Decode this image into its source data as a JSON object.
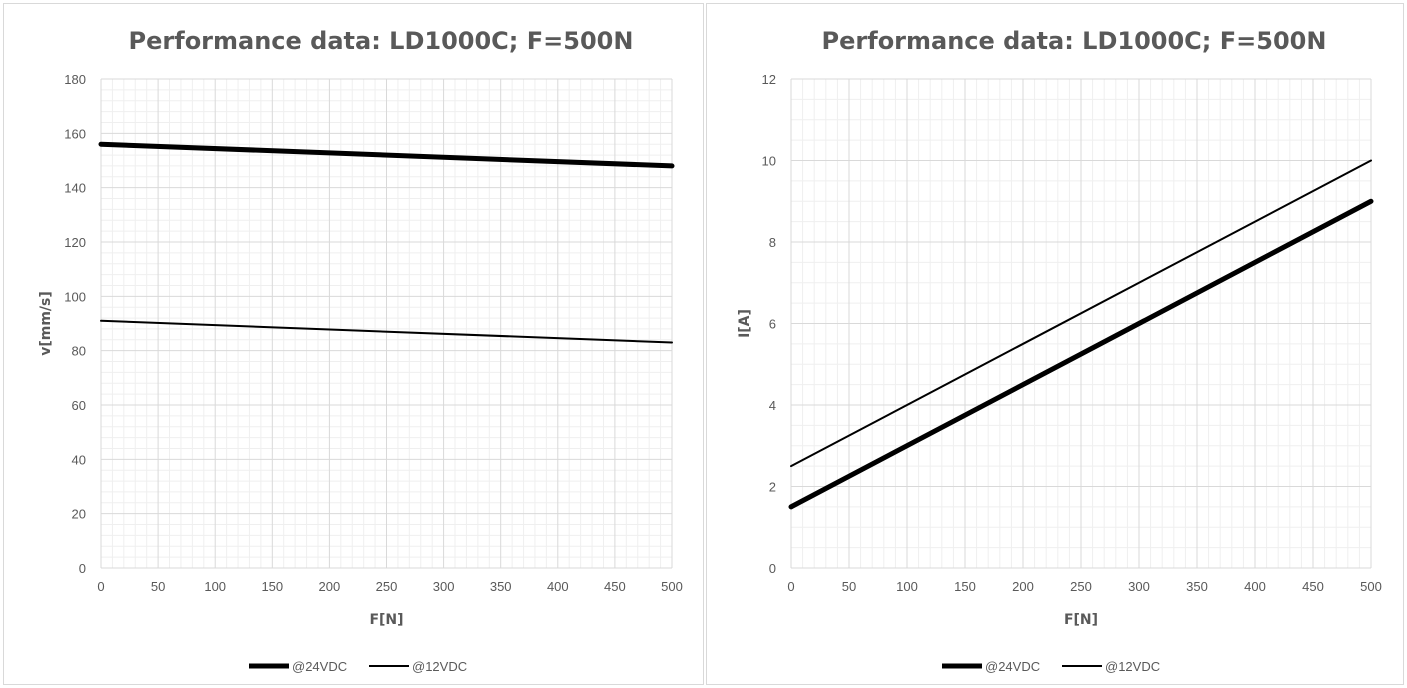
{
  "chart_data": [
    {
      "type": "line",
      "title": "Performance data: LD1000C; F=500N",
      "xlabel": "F[N]",
      "ylabel": "v[mm/s]",
      "xlim": [
        0,
        500
      ],
      "ylim": [
        0,
        180
      ],
      "xticks": [
        "0",
        "50",
        "100",
        "150",
        "200",
        "250",
        "300",
        "350",
        "400",
        "450",
        "500"
      ],
      "yticks": [
        "0",
        "20",
        "40",
        "60",
        "80",
        "100",
        "120",
        "140",
        "160",
        "180"
      ],
      "grid": true,
      "legend_position": "bottom",
      "series": [
        {
          "name": "@24VDC",
          "color": "#000000",
          "x": [
            0,
            500
          ],
          "y": [
            156,
            148
          ]
        },
        {
          "name": "@12VDC",
          "color": "#000000",
          "x": [
            0,
            500
          ],
          "y": [
            91,
            83
          ]
        }
      ]
    },
    {
      "type": "line",
      "title": "Performance data: LD1000C; F=500N",
      "xlabel": "F[N]",
      "ylabel": "I[A]",
      "xlim": [
        0,
        500
      ],
      "ylim": [
        0,
        12
      ],
      "xticks": [
        "0",
        "50",
        "100",
        "150",
        "200",
        "250",
        "300",
        "350",
        "400",
        "450",
        "500"
      ],
      "yticks": [
        "0",
        "2",
        "4",
        "6",
        "8",
        "10",
        "12"
      ],
      "grid": true,
      "legend_position": "bottom",
      "series": [
        {
          "name": "@24VDC",
          "color": "#000000",
          "x": [
            0,
            500
          ],
          "y": [
            1.5,
            9
          ]
        },
        {
          "name": "@12VDC",
          "color": "#000000",
          "x": [
            0,
            500
          ],
          "y": [
            2.5,
            10
          ]
        }
      ]
    }
  ]
}
